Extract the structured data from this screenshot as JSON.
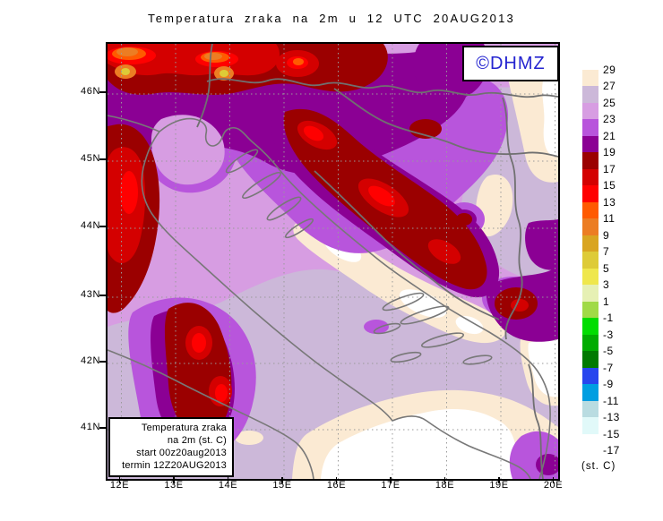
{
  "title": "Temperatura zraka na 2m u 12 UTC 20AUG2013",
  "logo": {
    "text": "©DHMZ"
  },
  "axes": {
    "lat": [
      "46N",
      "45N",
      "44N",
      "43N",
      "42N",
      "41N"
    ],
    "lon": [
      "12E",
      "13E",
      "14E",
      "15E",
      "16E",
      "17E",
      "18E",
      "19E",
      "20E"
    ]
  },
  "colorbar": {
    "unit_label": "(st. C)",
    "tick_labels": [
      "29",
      "27",
      "25",
      "23",
      "21",
      "19",
      "17",
      "15",
      "13",
      "11",
      "9",
      "7",
      "5",
      "3",
      "1",
      "-1",
      "-3",
      "-5",
      "-7",
      "-9",
      "-11",
      "-13",
      "-15",
      "-17"
    ],
    "band_colors": [
      "#FBEAD3",
      "#CCB8D9",
      "#D79DE2",
      "#B855DC",
      "#8B0094",
      "#9B0000",
      "#D40000",
      "#FF0000",
      "#FF5A00",
      "#EC7D23",
      "#D9A521",
      "#DECB37",
      "#EFE74D",
      "#E6F0B4",
      "#A0DA46",
      "#00DD00",
      "#00AC00",
      "#007A00",
      "#2746EE",
      "#009EE1",
      "#B9DCE1",
      "#E1F9F9",
      "#FFFFFF"
    ]
  },
  "info_box": {
    "lines": [
      "Temperatura zraka",
      "na 2m (st. C)",
      "start 00z20aug2013",
      "termin 12Z20AUG2013"
    ]
  }
}
